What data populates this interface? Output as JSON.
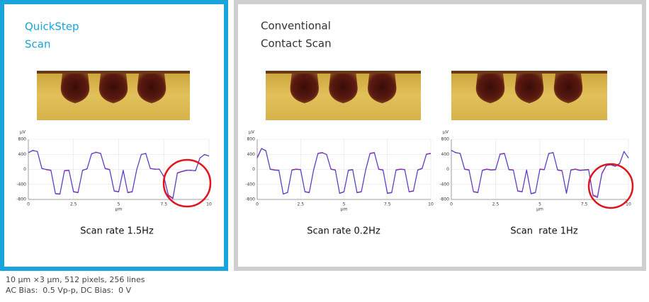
{
  "panels": [
    {
      "title": [
        "QuickStep",
        "Scan"
      ]
    },
    {
      "title": [
        "Conventional",
        "Contact Scan"
      ]
    }
  ],
  "footer": [
    "10 µm ×3 µm, 512 pixels, 256 lines",
    "AC Bias:  0.5 Vp-p, DC Bias:  0 V"
  ],
  "chart_data": [
    {
      "type": "line",
      "caption": "Scan rate 1.5Hz",
      "ylabel": "µV",
      "xlabel": "µm",
      "x": [
        0,
        0.25,
        0.5,
        0.75,
        1,
        1.25,
        1.5,
        1.75,
        2,
        2.25,
        2.5,
        2.75,
        3,
        3.25,
        3.5,
        3.75,
        4,
        4.25,
        4.5,
        4.75,
        5,
        5.25,
        5.5,
        5.75,
        6,
        6.25,
        6.5,
        6.75,
        7,
        7.25,
        7.5,
        7.75,
        8,
        8.25,
        8.5,
        8.75,
        9,
        9.25,
        9.5,
        9.75,
        10
      ],
      "series": [
        {
          "color": "#4a3fd6",
          "values": [
            450,
            500,
            480,
            20,
            0,
            -20,
            -650,
            -660,
            -40,
            -30,
            -600,
            -620,
            -20,
            10,
            420,
            450,
            430,
            20,
            -10,
            -580,
            -600,
            -20,
            -620,
            -600,
            -10,
            400,
            420,
            30,
            0,
            10,
            -200,
            -700,
            -780,
            -100,
            -60,
            -30,
            -20,
            -40,
            300,
            400,
            350
          ]
        },
        {
          "color": "#e0306a",
          "values": [
            440,
            510,
            470,
            30,
            -10,
            -30,
            -640,
            -650,
            -30,
            -20,
            -590,
            -610,
            -30,
            20,
            410,
            460,
            420,
            30,
            0,
            -570,
            -590,
            -30,
            -610,
            -590,
            0,
            390,
            430,
            20,
            10,
            0,
            -180,
            -680,
            -760,
            -90,
            -50,
            -20,
            -30,
            -30,
            310,
            390,
            360
          ]
        }
      ],
      "xlim": [
        0,
        10
      ],
      "ylim": [
        -800,
        800
      ],
      "xticks": [
        0,
        2.5,
        5,
        7.5,
        10
      ],
      "yticks": [
        -800,
        -400,
        0,
        400,
        800
      ],
      "grid": true
    },
    {
      "type": "line",
      "caption": "Scan rate 0.2Hz",
      "ylabel": "µV",
      "xlabel": "µm",
      "x": [
        0,
        0.25,
        0.5,
        0.75,
        1,
        1.25,
        1.5,
        1.75,
        2,
        2.25,
        2.5,
        2.75,
        3,
        3.25,
        3.5,
        3.75,
        4,
        4.25,
        4.5,
        4.75,
        5,
        5.25,
        5.5,
        5.75,
        6,
        6.25,
        6.5,
        6.75,
        7,
        7.25,
        7.5,
        7.75,
        8,
        8.25,
        8.5,
        8.75,
        9,
        9.25,
        9.5,
        9.75,
        10
      ],
      "series": [
        {
          "color": "#4a3fd6",
          "values": [
            300,
            550,
            500,
            0,
            -20,
            -30,
            -650,
            -620,
            -20,
            0,
            -10,
            -600,
            -620,
            -20,
            420,
            440,
            400,
            0,
            -20,
            -640,
            -600,
            -30,
            -10,
            -620,
            -600,
            -20,
            420,
            440,
            0,
            -20,
            -640,
            -620,
            -20,
            0,
            -10,
            -600,
            -580,
            -20,
            20,
            400,
            420
          ]
        },
        {
          "color": "#e0306a",
          "values": [
            320,
            560,
            490,
            10,
            -10,
            -20,
            -660,
            -610,
            -10,
            10,
            0,
            -590,
            -610,
            -10,
            430,
            450,
            390,
            10,
            -10,
            -630,
            -590,
            -20,
            0,
            -610,
            -590,
            -10,
            430,
            450,
            10,
            -10,
            -630,
            -610,
            -10,
            10,
            0,
            -590,
            -570,
            -10,
            30,
            410,
            430
          ]
        }
      ],
      "xlim": [
        0,
        10
      ],
      "ylim": [
        -800,
        800
      ],
      "xticks": [
        0,
        2.5,
        5,
        7.5,
        10
      ],
      "yticks": [
        -800,
        -400,
        0,
        400,
        800
      ],
      "grid": true
    },
    {
      "type": "line",
      "caption": "Scan  rate 1Hz",
      "ylabel": "µV",
      "xlabel": "µm",
      "x": [
        0,
        0.25,
        0.5,
        0.75,
        1,
        1.25,
        1.5,
        1.75,
        2,
        2.25,
        2.5,
        2.75,
        3,
        3.25,
        3.5,
        3.75,
        4,
        4.25,
        4.5,
        4.75,
        5,
        5.25,
        5.5,
        5.75,
        6,
        6.25,
        6.5,
        6.75,
        7,
        7.25,
        7.5,
        7.75,
        8,
        8.25,
        8.5,
        8.75,
        9,
        9.25,
        9.5,
        9.75,
        10
      ],
      "series": [
        {
          "color": "#4a3fd6",
          "values": [
            500,
            450,
            420,
            0,
            -20,
            -600,
            -620,
            -30,
            0,
            -20,
            -10,
            400,
            420,
            -10,
            -20,
            -580,
            -600,
            -20,
            -650,
            -620,
            0,
            -10,
            420,
            450,
            -20,
            -40,
            -640,
            -20,
            0,
            -30,
            -20,
            -10,
            -700,
            -750,
            -120,
            100,
            120,
            80,
            150,
            480,
            300
          ]
        },
        {
          "color": "#e0306a",
          "values": [
            510,
            440,
            430,
            10,
            -10,
            -590,
            -610,
            -20,
            10,
            -10,
            0,
            410,
            430,
            0,
            -10,
            -570,
            -590,
            -10,
            -640,
            -610,
            10,
            0,
            430,
            440,
            -10,
            -30,
            -630,
            -10,
            10,
            -20,
            -10,
            0,
            -680,
            -720,
            -100,
            110,
            130,
            90,
            160,
            470,
            310
          ]
        }
      ],
      "xlim": [
        0,
        10
      ],
      "ylim": [
        -800,
        800
      ],
      "xticks": [
        0,
        2.5,
        5,
        7.5,
        10
      ],
      "yticks": [
        -800,
        -400,
        0,
        400,
        800
      ],
      "grid": true
    }
  ]
}
